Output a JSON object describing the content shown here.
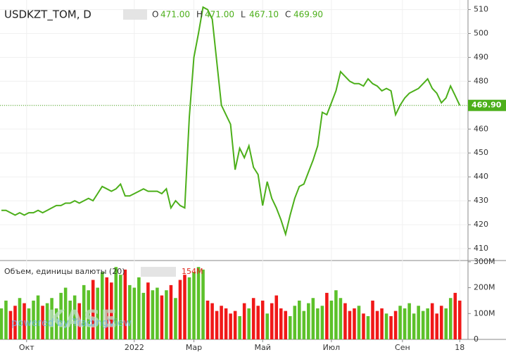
{
  "chart_data": {
    "type": "line",
    "title": "USDKZT_TOM, D",
    "ohlc_labels": [
      "O",
      "H",
      "L",
      "C"
    ],
    "ohlc_values": [
      471.0,
      471.0,
      467.1,
      469.9
    ],
    "ohlc_value_labels": [
      "471.00",
      "471.00",
      "467.10",
      "469.90"
    ],
    "last_value": 469.9,
    "last_value_label": "469.90",
    "watermark": "KASE",
    "watermark_sub": "powered by TradingView",
    "line_color": "#4caf1a",
    "xlim": [
      -0.3,
      101.8
    ],
    "xticks": [
      {
        "value": 5.5,
        "label": "Окт"
      },
      {
        "value": 29,
        "label": "2022"
      },
      {
        "value": 42,
        "label": "Мар"
      },
      {
        "value": 57,
        "label": "Май"
      },
      {
        "value": 72,
        "label": "Июл"
      },
      {
        "value": 87.5,
        "label": "Сен"
      },
      {
        "value": 100,
        "label": "18"
      }
    ],
    "ylim": [
      405,
      514
    ],
    "yticks": [
      410,
      420,
      430,
      440,
      450,
      460,
      470,
      480,
      490,
      500,
      510
    ],
    "values": [
      426,
      426,
      425,
      424,
      425,
      424,
      425,
      425,
      426,
      425,
      426,
      427,
      428,
      428,
      429,
      429,
      430,
      429,
      430,
      431,
      430,
      433,
      436,
      435,
      434,
      435,
      437,
      432,
      432,
      433,
      434,
      435,
      434,
      434,
      434,
      433,
      435,
      427,
      430,
      428,
      427,
      465,
      490,
      500,
      511,
      510,
      506,
      488,
      470,
      466,
      462,
      443,
      452,
      448,
      453,
      444,
      441,
      428,
      438,
      431,
      427,
      422,
      416,
      424,
      431,
      436,
      437,
      442,
      447,
      453,
      467,
      466,
      471,
      476,
      484,
      482,
      480,
      479,
      479,
      478,
      481,
      479,
      478,
      476,
      477,
      476,
      466,
      470,
      473,
      475,
      476,
      477,
      479,
      481,
      477,
      475,
      471,
      473,
      478,
      474,
      469.9
    ],
    "volume": {
      "title": "Объем, единицы валюты (20)",
      "last_label": "154M",
      "up_color": "#5cc12a",
      "down_color": "#f01818",
      "ylim": [
        0,
        305
      ],
      "yticks": [
        {
          "value": 0,
          "label": "0"
        },
        {
          "value": 100,
          "label": "100M"
        },
        {
          "value": 200,
          "label": "200M"
        },
        {
          "value": 300,
          "label": "300M"
        }
      ],
      "values": [
        120,
        150,
        110,
        130,
        160,
        140,
        120,
        150,
        170,
        130,
        140,
        160,
        120,
        180,
        200,
        150,
        170,
        140,
        210,
        190,
        230,
        200,
        260,
        240,
        220,
        280,
        250,
        270,
        210,
        200,
        240,
        180,
        220,
        190,
        200,
        170,
        190,
        210,
        160,
        230,
        250,
        240,
        260,
        280,
        270,
        150,
        140,
        110,
        130,
        120,
        100,
        110,
        90,
        140,
        120,
        160,
        130,
        150,
        100,
        140,
        170,
        120,
        110,
        90,
        130,
        150,
        110,
        140,
        160,
        120,
        130,
        180,
        150,
        190,
        160,
        140,
        110,
        120,
        130,
        100,
        90,
        150,
        110,
        120,
        100,
        90,
        110,
        130,
        120,
        140,
        100,
        130,
        110,
        120,
        140,
        100,
        130,
        120,
        160,
        180,
        150
      ]
    }
  }
}
